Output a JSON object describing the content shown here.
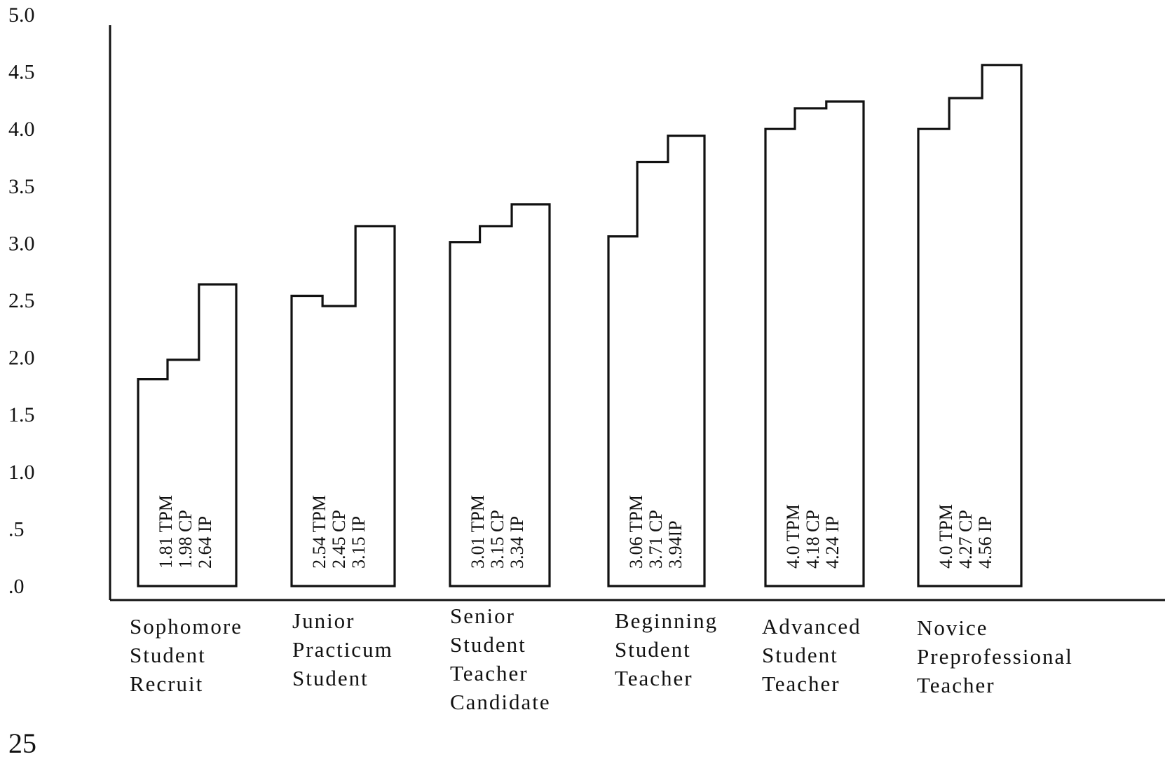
{
  "chart_data": {
    "type": "bar",
    "title": "",
    "xlabel": "",
    "ylabel": "",
    "ylim": [
      0,
      5
    ],
    "grid": false,
    "legend": "none",
    "y_tick_labels": [
      "5.0",
      "4.5",
      "4.0",
      "3.5",
      "3.0",
      "2.5",
      "2.0",
      "1.5",
      "1.0",
      ".5",
      ".0"
    ],
    "y_tick_values": [
      5.0,
      4.5,
      4.0,
      3.5,
      3.0,
      2.5,
      2.0,
      1.5,
      1.0,
      0.5,
      0.0
    ],
    "categories": [
      [
        "Sophomore",
        "Student",
        "Recruit"
      ],
      [
        "Junior",
        "Practicum",
        "Student"
      ],
      [
        "Senior",
        "Student",
        "Teacher",
        "Candidate"
      ],
      [
        "Beginning",
        "Student",
        "Teacher"
      ],
      [
        "Advanced",
        "Student",
        "Teacher"
      ],
      [
        "Novice",
        "Preprofessional",
        "Teacher"
      ]
    ],
    "series_keys": [
      "TPM",
      "CP",
      "IP"
    ],
    "values": [
      [
        1.81,
        1.98,
        2.64
      ],
      [
        2.54,
        2.45,
        3.15
      ],
      [
        3.01,
        3.15,
        3.34
      ],
      [
        3.06,
        3.71,
        3.94
      ],
      [
        4.0,
        4.18,
        4.24
      ],
      [
        4.0,
        4.27,
        4.56
      ]
    ],
    "bar_text": [
      [
        "1.81 TPM",
        "1.98 CP",
        "2.64 IP"
      ],
      [
        "2.54 TPM",
        "2.45 CP",
        "3.15 IP"
      ],
      [
        "3.01 TPM",
        "3.15 CP",
        "3.34 IP"
      ],
      [
        "3.06 TPM",
        "3.71 CP",
        "3.94IP"
      ],
      [
        "4.0 TPM",
        "4.18 CP",
        "4.24 IP"
      ],
      [
        "4.0 TPM",
        "4.27 CP",
        "4.56 IP"
      ]
    ]
  },
  "page_number": "25",
  "colors": {
    "ink": "#111111",
    "background": "#ffffff"
  }
}
